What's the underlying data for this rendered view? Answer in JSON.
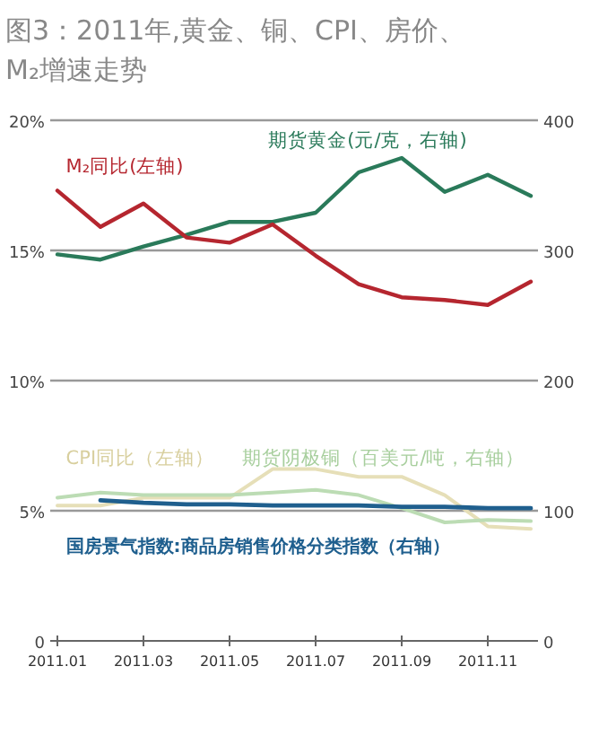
{
  "chart_data": {
    "type": "line",
    "title": "图3：2011年,黄金、铜、CPI、房价、M₂增速走势",
    "categories": [
      "2011.01",
      null,
      "2011.03",
      null,
      "2011.05",
      null,
      "2011.07",
      null,
      "2011.09",
      null,
      "2011.11",
      null
    ],
    "series": [
      {
        "name": "M₂同比(左轴)",
        "color": "#b5262f",
        "values": [
          17.3,
          15.9,
          16.8,
          15.5,
          15.3,
          16.0,
          14.8,
          13.7,
          13.2,
          13.1,
          12.9,
          13.8
        ]
      },
      {
        "name": "期货黄金(元/克，右轴)",
        "color": "#2a7a5a",
        "axis": "y2",
        "values": [
          297,
          293,
          303,
          312,
          322,
          322,
          329,
          360,
          371,
          345,
          358,
          342
        ]
      },
      {
        "name": "CPI同比（左轴）",
        "color": "#e6dfb8",
        "values": [
          5.2,
          5.2,
          5.5,
          5.5,
          5.5,
          6.6,
          6.6,
          6.3,
          6.3,
          5.6,
          4.4,
          4.3
        ]
      },
      {
        "name": "期货阴极铜（百美元/吨，右轴）",
        "color": "#bcdcb4",
        "axis": "y2",
        "values": [
          110,
          114,
          112,
          112,
          112,
          114,
          116,
          112,
          102,
          91,
          93,
          92
        ]
      },
      {
        "name": "国房景气指数:商品房销售价格分类指数（右轴）",
        "color": "#1f5f8e",
        "axis": "y2",
        "values": [
          null,
          108,
          106,
          105,
          105,
          104,
          104,
          104,
          103,
          103,
          102,
          102
        ]
      }
    ],
    "ylim": [
      0,
      20
    ],
    "yticks": [
      0,
      {
        "value": 5,
        "label": "5%"
      },
      {
        "value": 10,
        "label": "10%"
      },
      {
        "value": 15,
        "label": "15%"
      },
      {
        "value": 20,
        "label": "20%"
      }
    ],
    "y2lim": [
      0,
      400
    ],
    "y2ticks": [
      0,
      100,
      200,
      300,
      400
    ],
    "grid": "y",
    "marker": "none",
    "line_style": "solid"
  }
}
